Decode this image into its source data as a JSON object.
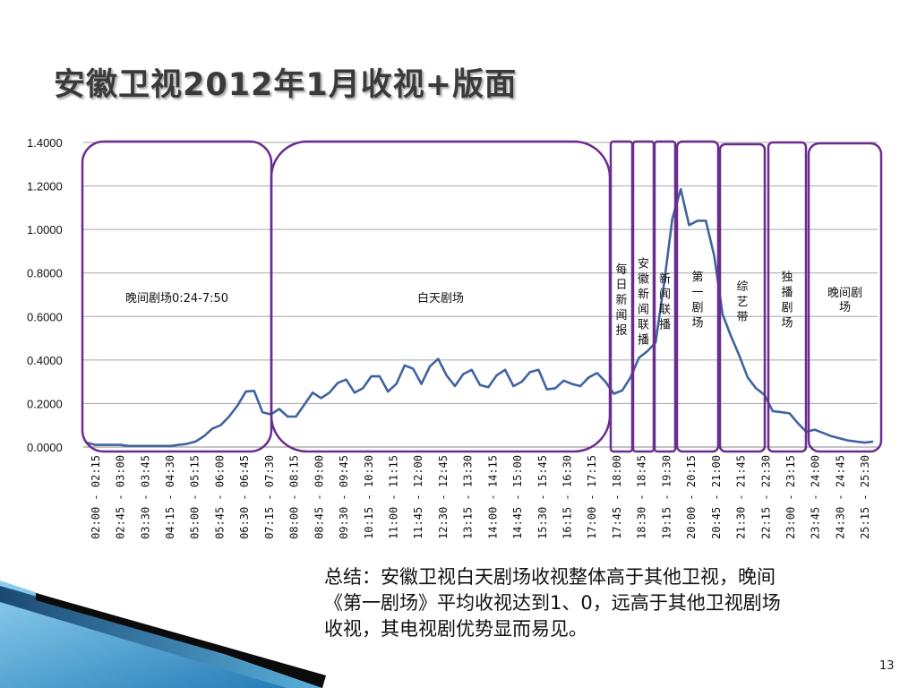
{
  "title": "安徽卫视2012年1月收视+版面",
  "summary_lines": [
    "总结：安徽卫视白天剧场收视整体高于其他卫视，晚间",
    "《第一剧场》平均收视达到1、0，远高于其他卫视剧场",
    "收视，其电视剧优势显而易见。"
  ],
  "page_number": "13",
  "colors": {
    "line": "#3f64a0",
    "box": "#6a2c8e",
    "grid": "#a6a6a6",
    "accent": "#4aa3d6"
  },
  "chart_data": {
    "type": "line",
    "ylim": [
      0,
      1.4
    ],
    "yticks": [
      "0.0000",
      "0.2000",
      "0.4000",
      "0.6000",
      "0.8000",
      "1.0000",
      "1.2000",
      "1.4000"
    ],
    "x_labels": [
      "02:00 - 02:15",
      "02:45 - 03:00",
      "03:30 - 03:45",
      "04:15 - 04:30",
      "05:00 - 05:15",
      "05:45 - 06:00",
      "06:30 - 06:45",
      "07:15 - 07:30",
      "08:00 - 08:15",
      "08:45 - 09:00",
      "09:30 - 09:45",
      "10:15 - 10:30",
      "11:00 - 11:15",
      "11:45 - 12:00",
      "12:30 - 12:45",
      "13:15 - 13:30",
      "14:00 - 14:15",
      "14:45 - 15:00",
      "15:30 - 15:45",
      "16:15 - 16:30",
      "17:00 - 17:15",
      "17:45 - 18:00",
      "18:30 - 18:45",
      "19:15 - 19:30",
      "20:00 - 20:15",
      "20:45 - 21:00",
      "21:30 - 21:45",
      "22:15 - 22:30",
      "23:00 - 23:15",
      "23:45 - 24:00",
      "24:30 - 24:45",
      "25:15 - 25:30"
    ],
    "series": [
      {
        "values": [
          0.02,
          0.01,
          0.01,
          0.01,
          0.01,
          0.005,
          0.005,
          0.005,
          0.005,
          0.005,
          0.005,
          0.01,
          0.015,
          0.025,
          0.05,
          0.085,
          0.1,
          0.14,
          0.19,
          0.255,
          0.258,
          0.16,
          0.15,
          0.175,
          0.14,
          0.14,
          0.195,
          0.25,
          0.225,
          0.25,
          0.295,
          0.31,
          0.25,
          0.27,
          0.325,
          0.325,
          0.255,
          0.29,
          0.375,
          0.36,
          0.29,
          0.37,
          0.405,
          0.33,
          0.28,
          0.335,
          0.355,
          0.285,
          0.275,
          0.33,
          0.355,
          0.28,
          0.3,
          0.345,
          0.355,
          0.265,
          0.27,
          0.305,
          0.29,
          0.28,
          0.32,
          0.34,
          0.3,
          0.245,
          0.26,
          0.32,
          0.41,
          0.44,
          0.48,
          0.75,
          1.05,
          1.185,
          1.02,
          1.04,
          1.04,
          0.88,
          0.61,
          0.51,
          0.42,
          0.32,
          0.27,
          0.24,
          0.165,
          0.16,
          0.155,
          0.11,
          0.07,
          0.08,
          0.065,
          0.05,
          0.04,
          0.03,
          0.025,
          0.02,
          0.025
        ]
      }
    ],
    "segments": [
      {
        "label": "晚间剧场0:24-7:50",
        "vertical": false
      },
      {
        "label": "白天剧场",
        "vertical": false
      },
      {
        "label": "每日新闻报",
        "vertical": true
      },
      {
        "label": "安徽新闻联播",
        "vertical": true
      },
      {
        "label": "新闻联播",
        "vertical": true
      },
      {
        "label": "第一剧场",
        "vertical": true
      },
      {
        "label": "综艺带",
        "vertical": true
      },
      {
        "label": "独播剧场",
        "vertical": true
      },
      {
        "label": "晚间剧场",
        "vertical": false
      }
    ]
  }
}
